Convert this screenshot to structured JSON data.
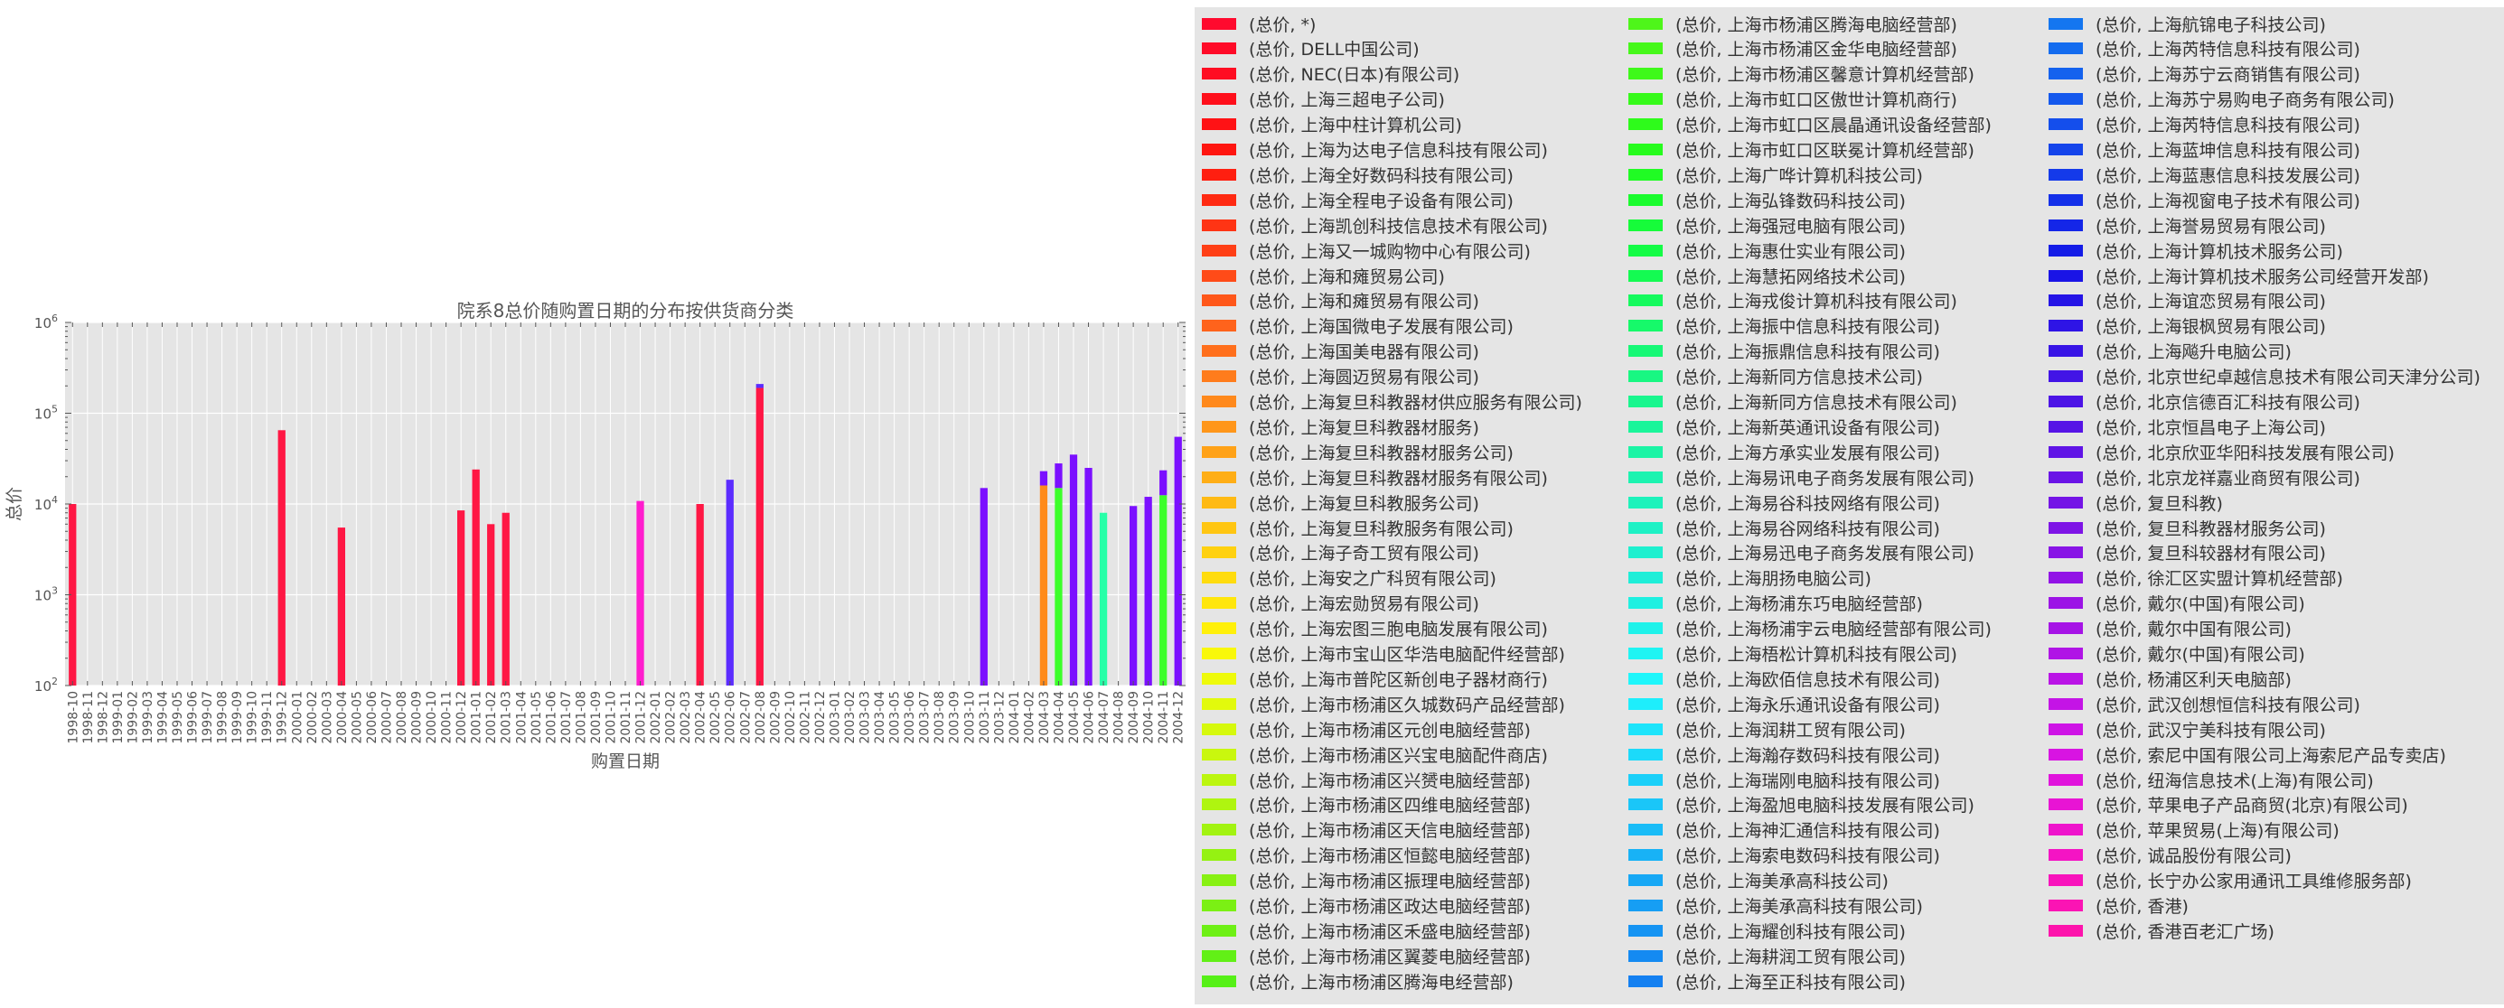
{
  "chart_data": {
    "type": "bar",
    "stacked": true,
    "title": "院系8总价随购置日期的分布按供货商分类",
    "xlabel": "购置日期",
    "ylabel": "总价",
    "yscale": "log",
    "ylim": [
      100,
      1000000
    ],
    "ytick_exponents": [
      "2",
      "3",
      "4",
      "5",
      "6"
    ],
    "ytick_base": "10",
    "grid": true,
    "legend_position": "right",
    "categories": [
      "1998-10",
      "1998-11",
      "1998-12",
      "1999-01",
      "1999-02",
      "1999-03",
      "1999-04",
      "1999-05",
      "1999-06",
      "1999-07",
      "1999-08",
      "1999-09",
      "1999-10",
      "1999-11",
      "1999-12",
      "2000-01",
      "2000-02",
      "2000-03",
      "2000-04",
      "2000-05",
      "2000-06",
      "2000-07",
      "2000-08",
      "2000-09",
      "2000-10",
      "2000-11",
      "2000-12",
      "2001-01",
      "2001-02",
      "2001-03",
      "2001-04",
      "2001-05",
      "2001-06",
      "2001-07",
      "2001-08",
      "2001-09",
      "2001-10",
      "2001-11",
      "2001-12",
      "2002-01",
      "2002-02",
      "2002-03",
      "2002-04",
      "2002-05",
      "2002-06",
      "2002-07",
      "2002-08",
      "2002-09",
      "2002-10",
      "2002-11",
      "2002-12",
      "2003-01",
      "2003-02",
      "2003-03",
      "2003-04",
      "2003-05",
      "2003-06",
      "2003-07",
      "2003-08",
      "2003-09",
      "2003-10",
      "2003-11",
      "2003-12",
      "2004-01",
      "2004-02",
      "2004-03",
      "2004-04",
      "2004-05",
      "2004-06",
      "2004-07",
      "2004-08",
      "2004-09",
      "2004-10",
      "2004-11",
      "2004-12"
    ],
    "bars": [
      {
        "x": "1998-10",
        "segments": [
          {
            "series": 0,
            "value": 10000
          }
        ]
      },
      {
        "x": "1999-12",
        "segments": [
          {
            "series": 0,
            "value": 65000
          }
        ]
      },
      {
        "x": "2000-04",
        "segments": [
          {
            "series": 0,
            "value": 5500
          }
        ]
      },
      {
        "x": "2000-12",
        "segments": [
          {
            "series": 0,
            "value": 8500
          }
        ]
      },
      {
        "x": "2001-01",
        "segments": [
          {
            "series": 0,
            "value": 24000
          }
        ]
      },
      {
        "x": "2001-02",
        "segments": [
          {
            "series": 0,
            "value": 6000
          }
        ]
      },
      {
        "x": "2001-03",
        "segments": [
          {
            "series": 0,
            "value": 8000
          }
        ]
      },
      {
        "x": "2001-12",
        "segments": [
          {
            "series": 1,
            "value": 10800
          }
        ]
      },
      {
        "x": "2002-04",
        "segments": [
          {
            "series": 0,
            "value": 10000
          }
        ]
      },
      {
        "x": "2002-06",
        "segments": [
          {
            "series": 2,
            "value": 18500
          }
        ]
      },
      {
        "x": "2002-08",
        "segments": [
          {
            "series": 0,
            "value": 190000
          },
          {
            "series": 2,
            "value": 20000
          }
        ]
      },
      {
        "x": "2003-11",
        "segments": [
          {
            "series": 3,
            "value": 15000
          }
        ]
      },
      {
        "x": "2004-03",
        "segments": [
          {
            "series": 5,
            "value": 16000
          },
          {
            "series": 3,
            "value": 7000
          }
        ]
      },
      {
        "x": "2004-04",
        "segments": [
          {
            "series": 4,
            "value": 15000
          },
          {
            "series": 3,
            "value": 13000
          }
        ]
      },
      {
        "x": "2004-05",
        "segments": [
          {
            "series": 3,
            "value": 35000
          }
        ]
      },
      {
        "x": "2004-06",
        "segments": [
          {
            "series": 3,
            "value": 25000
          }
        ]
      },
      {
        "x": "2004-07",
        "segments": [
          {
            "series": 6,
            "value": 8000
          }
        ]
      },
      {
        "x": "2004-09",
        "segments": [
          {
            "series": 3,
            "value": 9500
          }
        ]
      },
      {
        "x": "2004-10",
        "segments": [
          {
            "series": 3,
            "value": 12000
          }
        ]
      },
      {
        "x": "2004-11",
        "segments": [
          {
            "series": 4,
            "value": 12500
          },
          {
            "series": 3,
            "value": 11000
          }
        ]
      },
      {
        "x": "2004-12",
        "segments": [
          {
            "series": 3,
            "value": 55000
          }
        ]
      }
    ],
    "bar_colors": [
      "#ff1744",
      "#ff1dce",
      "#5b2cff",
      "#7b10ff",
      "#3cff2a",
      "#ff8a1a",
      "#27ffa8"
    ],
    "legend": [
      {
        "label": "(总价, *)",
        "color": "#ff0a2e"
      },
      {
        "label": "(总价, DELL中国公司)",
        "color": "#ff0b28"
      },
      {
        "label": "(总价, NEC(日本)有限公司)",
        "color": "#ff0d22"
      },
      {
        "label": "(总价, 上海三超电子公司)",
        "color": "#ff0f1b"
      },
      {
        "label": "(总价, 上海中柱计算机公司)",
        "color": "#ff1215"
      },
      {
        "label": "(总价, 上海为达电子信息科技有限公司)",
        "color": "#ff1510"
      },
      {
        "label": "(总价, 上海全好数码科技有限公司)",
        "color": "#ff1f10"
      },
      {
        "label": "(总价, 上海全程电子设备有限公司)",
        "color": "#ff2a12"
      },
      {
        "label": "(总价, 上海凯创科技信息技术有限公司)",
        "color": "#ff3414"
      },
      {
        "label": "(总价, 上海又一城购物中心有限公司)",
        "color": "#ff3f16"
      },
      {
        "label": "(总价, 上海和瘫贸易公司)",
        "color": "#ff4b18"
      },
      {
        "label": "(总价, 上海和瘫贸易有限公司)",
        "color": "#ff571a"
      },
      {
        "label": "(总价, 上海国微电子发展有限公司)",
        "color": "#ff631c"
      },
      {
        "label": "(总价, 上海国美电器有限公司)",
        "color": "#ff6f1c"
      },
      {
        "label": "(总价, 上海圆迈贸易有限公司)",
        "color": "#ff7c1c"
      },
      {
        "label": "(总价, 上海复旦科教器材供应服务有限公司)",
        "color": "#ff891c"
      },
      {
        "label": "(总价, 上海复旦科教器材服务)",
        "color": "#ff961a"
      },
      {
        "label": "(总价, 上海复旦科教器材服务公司)",
        "color": "#ffa218"
      },
      {
        "label": "(总价, 上海复旦科教器材服务有限公司)",
        "color": "#ffae16"
      },
      {
        "label": "(总价, 上海复旦科教服务公司)",
        "color": "#ffba14"
      },
      {
        "label": "(总价, 上海复旦科教服务有限公司)",
        "color": "#ffc612"
      },
      {
        "label": "(总价, 上海子奇工贸有限公司)",
        "color": "#ffd110"
      },
      {
        "label": "(总价, 上海安之广科贸有限公司)",
        "color": "#ffdc0e"
      },
      {
        "label": "(总价, 上海宏勋贸易有限公司)",
        "color": "#ffe60c"
      },
      {
        "label": "(总价, 上海宏图三胞电脑发展有限公司)",
        "color": "#fff00a"
      },
      {
        "label": "(总价, 上海市宝山区华浩电脑配件经营部)",
        "color": "#f9f80a"
      },
      {
        "label": "(总价, 上海市普陀区新创电子器材商行)",
        "color": "#eefa0b"
      },
      {
        "label": "(总价, 上海市杨浦区久城数码产品经营部)",
        "color": "#e2fa0c"
      },
      {
        "label": "(总价, 上海市杨浦区元创电脑经营部)",
        "color": "#d6f90d"
      },
      {
        "label": "(总价, 上海市杨浦区兴宝电脑配件商店)",
        "color": "#c9f70e"
      },
      {
        "label": "(总价, 上海市杨浦区兴赟电脑经营部)",
        "color": "#bcf60f"
      },
      {
        "label": "(总价, 上海市杨浦区四维电脑经营部)",
        "color": "#aff510"
      },
      {
        "label": "(总价, 上海市杨浦区天信电脑经营部)",
        "color": "#a2f311"
      },
      {
        "label": "(总价, 上海市杨浦区恒懿电脑经营部)",
        "color": "#95f212"
      },
      {
        "label": "(总价, 上海市杨浦区振理电脑经营部)",
        "color": "#88f113"
      },
      {
        "label": "(总价, 上海市杨浦区政达电脑经营部)",
        "color": "#7bf014"
      },
      {
        "label": "(总价, 上海市杨浦区禾盛电脑经营部)",
        "color": "#6ef015"
      },
      {
        "label": "(总价, 上海市杨浦区翼菱电脑经营部)",
        "color": "#62f016"
      },
      {
        "label": "(总价, 上海市杨浦区腾海电经营部)",
        "color": "#56f017"
      },
      {
        "label": "(总价, 上海市杨浦区腾海电脑经营部)",
        "color": "#4ef61a"
      },
      {
        "label": "(总价, 上海市杨浦区金华电脑经营部)",
        "color": "#46f81a"
      },
      {
        "label": "(总价, 上海市杨浦区馨意计算机经营部)",
        "color": "#3ef91a"
      },
      {
        "label": "(总价, 上海市虹口区傲世计算机商行)",
        "color": "#36fa1a"
      },
      {
        "label": "(总价, 上海市虹口区晨晶通讯设备经营部)",
        "color": "#2efb1b"
      },
      {
        "label": "(总价, 上海市虹口区联冕计算机经营部)",
        "color": "#26fc1d"
      },
      {
        "label": "(总价, 上海广哗计算机科技公司)",
        "color": "#20fc24"
      },
      {
        "label": "(总价, 上海弘锋数码科技公司)",
        "color": "#1afc2e"
      },
      {
        "label": "(总价, 上海强冠电脑有限公司)",
        "color": "#16fc3a"
      },
      {
        "label": "(总价, 上海惠仕实业有限公司)",
        "color": "#14fc46"
      },
      {
        "label": "(总价, 上海慧拓网络技术公司)",
        "color": "#14fb52"
      },
      {
        "label": "(总价, 上海戎俊计算机科技有限公司)",
        "color": "#15fa5e"
      },
      {
        "label": "(总价, 上海振中信息科技有限公司)",
        "color": "#16f96a"
      },
      {
        "label": "(总价, 上海振鼎信息科技有限公司)",
        "color": "#17f876"
      },
      {
        "label": "(总价, 上海新同方信息技术公司)",
        "color": "#18f782"
      },
      {
        "label": "(总价, 上海新同方信息技术有限公司)",
        "color": "#19f68e"
      },
      {
        "label": "(总价, 上海新英通讯设备有限公司)",
        "color": "#1af59a"
      },
      {
        "label": "(总价, 上海方承实业发展有限公司)",
        "color": "#1bf4a5"
      },
      {
        "label": "(总价, 上海易讯电子商务发展有限公司)",
        "color": "#1cf3b0"
      },
      {
        "label": "(总价, 上海易谷科技网络有限公司)",
        "color": "#1df2bb"
      },
      {
        "label": "(总价, 上海易谷网络科技有限公司)",
        "color": "#1ef1c5"
      },
      {
        "label": "(总价, 上海易迅电子商务发展有限公司)",
        "color": "#1ef0cf"
      },
      {
        "label": "(总价, 上海朋扬电脑公司)",
        "color": "#1feed8"
      },
      {
        "label": "(总价, 上海杨浦东巧电脑经营部)",
        "color": "#1ff0e1"
      },
      {
        "label": "(总价, 上海杨浦宇云电脑经营部有限公司)",
        "color": "#1ff2ea"
      },
      {
        "label": "(总价, 上海梧松计算机科技有限公司)",
        "color": "#1ff4f3"
      },
      {
        "label": "(总价, 上海欧佰信息技术有限公司)",
        "color": "#1ff6fb"
      },
      {
        "label": "(总价, 上海永乐通讯设备有限公司)",
        "color": "#1eeefc"
      },
      {
        "label": "(总价, 上海润耕工贸有限公司)",
        "color": "#1de4fb"
      },
      {
        "label": "(总价, 上海瀚存数码科技有限公司)",
        "color": "#1cdafa"
      },
      {
        "label": "(总价, 上海瑞刚电脑科技有限公司)",
        "color": "#1bd0f9"
      },
      {
        "label": "(总价, 上海盈旭电脑科技发展有限公司)",
        "color": "#1ac6f8"
      },
      {
        "label": "(总价, 上海神汇通信科技有限公司)",
        "color": "#19bcf7"
      },
      {
        "label": "(总价, 上海索电数码科技有限公司)",
        "color": "#18b2f6"
      },
      {
        "label": "(总价, 上海美承高科技公司)",
        "color": "#17a8f5"
      },
      {
        "label": "(总价, 上海美承高科技有限公司)",
        "color": "#169ef4"
      },
      {
        "label": "(总价, 上海耀创科技有限公司)",
        "color": "#1594f3"
      },
      {
        "label": "(总价, 上海耕润工贸有限公司)",
        "color": "#148af2"
      },
      {
        "label": "(总价, 上海至正科技有限公司)",
        "color": "#1480f1"
      },
      {
        "label": "(总价, 上海航锦电子科技公司)",
        "color": "#1476f0"
      },
      {
        "label": "(总价, 上海芮特信息科技有限公司)",
        "color": "#146cef"
      },
      {
        "label": "(总价, 上海苏宁云商销售有限公司)",
        "color": "#1462ee"
      },
      {
        "label": "(总价, 上海苏宁易购电子商务有限公司)",
        "color": "#1458ed"
      },
      {
        "label": "(总价, 上海芮特信息科技有限公司)",
        "color": "#144eec"
      },
      {
        "label": "(总价, 上海蓝坤信息科技有限公司)",
        "color": "#1444eb"
      },
      {
        "label": "(总价, 上海蓝惠信息科技发展公司)",
        "color": "#143aea"
      },
      {
        "label": "(总价, 上海视窗电子技术有限公司)",
        "color": "#1430e9"
      },
      {
        "label": "(总价, 上海誉易贸易有限公司)",
        "color": "#1426e8"
      },
      {
        "label": "(总价, 上海计算机技术服务公司)",
        "color": "#141ce7"
      },
      {
        "label": "(总价, 上海计算机技术服务公司经营开发部)",
        "color": "#1a14e6"
      },
      {
        "label": "(总价, 上海谊恋贸易有限公司)",
        "color": "#2414e6"
      },
      {
        "label": "(总价, 上海银枫贸易有限公司)",
        "color": "#2e14e6"
      },
      {
        "label": "(总价, 上海飚升电脑公司)",
        "color": "#3814e6"
      },
      {
        "label": "(总价, 北京世纪卓越信息技术有限公司天津分公司)",
        "color": "#4214e6"
      },
      {
        "label": "(总价, 北京信德百汇科技有限公司)",
        "color": "#4c14e6"
      },
      {
        "label": "(总价, 北京恒昌电子上海公司)",
        "color": "#5614e6"
      },
      {
        "label": "(总价, 北京欣亚华阳科技发展有限公司)",
        "color": "#6014e6"
      },
      {
        "label": "(总价, 北京龙祥嘉业商贸有限公司)",
        "color": "#6a14e6"
      },
      {
        "label": "(总价, 复旦科教)",
        "color": "#7414e6"
      },
      {
        "label": "(总价, 复旦科教器材服务公司)",
        "color": "#7e14e6"
      },
      {
        "label": "(总价, 复旦科较器材有限公司)",
        "color": "#8814e6"
      },
      {
        "label": "(总价, 徐汇区实盟计算机经营部)",
        "color": "#9214e6"
      },
      {
        "label": "(总价, 戴尔(中国)有限公司)",
        "color": "#9c14e6"
      },
      {
        "label": "(总价, 戴尔中国有限公司)",
        "color": "#a614e6"
      },
      {
        "label": "(总价, 戴尔(中国)有限公司)",
        "color": "#b014e6"
      },
      {
        "label": "(总价, 杨浦区利天电脑部)",
        "color": "#ba14e6"
      },
      {
        "label": "(总价, 武汉创想恒信科技有限公司)",
        "color": "#c414e6"
      },
      {
        "label": "(总价, 武汉宁美科技有限公司)",
        "color": "#ce14e6"
      },
      {
        "label": "(总价, 索尼中国有限公司上海索尼产品专卖店)",
        "color": "#d814e2"
      },
      {
        "label": "(总价, 纽海信息技术(上海)有限公司)",
        "color": "#e014dc"
      },
      {
        "label": "(总价, 苹果电子产品商贸(北京)有限公司)",
        "color": "#e814d4"
      },
      {
        "label": "(总价, 苹果贸易(上海)有限公司)",
        "color": "#ee14cc"
      },
      {
        "label": "(总价, 诚品股份有限公司)",
        "color": "#f414c4"
      },
      {
        "label": "(总价, 长宁办公家用通讯工具维修服务部)",
        "color": "#f814bc"
      },
      {
        "label": "(总价, 香港)",
        "color": "#fb14b4"
      },
      {
        "label": "(总价, 香港百老汇广场)",
        "color": "#fd14ac"
      }
    ]
  }
}
